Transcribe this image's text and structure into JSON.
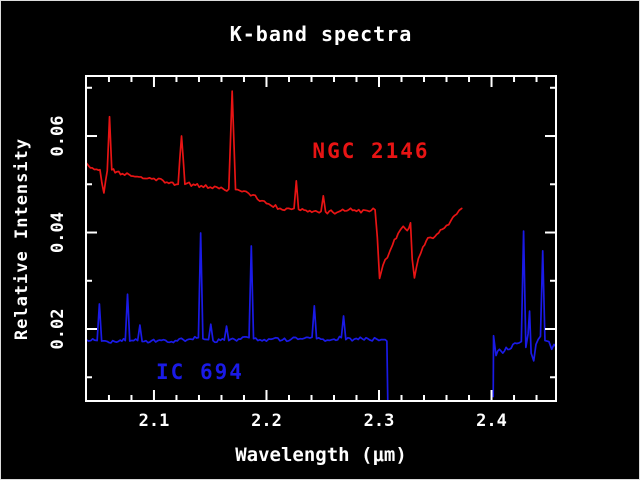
{
  "chart_data": {
    "type": "line",
    "title": "K-band spectra",
    "xlabel": "Wavelength (μm)",
    "ylabel": "Relative Intensity",
    "background_color": "#000000",
    "axis_color": "#ffffff",
    "grid": false,
    "xlim": [
      2.0396,
      2.4573
    ],
    "ylim": [
      0.00508,
      0.07244
    ],
    "x_major_ticks": [
      2.1,
      2.2,
      2.3,
      2.4
    ],
    "x_tick_labels": [
      "2.1",
      "2.2",
      "2.3",
      "2.4"
    ],
    "x_minor_ticks": [
      2.06,
      2.08,
      2.12,
      2.14,
      2.16,
      2.18,
      2.22,
      2.24,
      2.26,
      2.28,
      2.32,
      2.34,
      2.36,
      2.38,
      2.42,
      2.44
    ],
    "y_major_ticks": [
      0.02,
      0.04,
      0.06
    ],
    "y_tick_labels": [
      "0.02",
      "0.04",
      "0.06"
    ],
    "y_minor_ticks": [
      0.01,
      0.03,
      0.05,
      0.07
    ],
    "series": [
      {
        "name": "NGC 2146",
        "key": "ngc-2146",
        "color": "#e81414",
        "noise": 0.00042,
        "seed": 11,
        "label_at": [
          2.2929,
          0.0569
        ],
        "segments": [
          [
            [
              2.0396,
              0.0545
            ],
            [
              2.042,
              0.0538
            ],
            [
              2.045,
              0.0534
            ],
            [
              2.049,
              0.0531
            ],
            [
              2.052,
              0.053
            ],
            [
              2.0555,
              0.0482
            ],
            [
              2.0585,
              0.0528
            ],
            [
              2.0605,
              0.064
            ],
            [
              2.0625,
              0.053
            ],
            [
              2.067,
              0.0526
            ],
            [
              2.072,
              0.0522
            ],
            [
              2.078,
              0.052
            ],
            [
              2.085,
              0.0516
            ],
            [
              2.092,
              0.0512
            ],
            [
              2.1,
              0.0512
            ],
            [
              2.108,
              0.0508
            ],
            [
              2.115,
              0.0504
            ],
            [
              2.1215,
              0.05
            ],
            [
              2.1245,
              0.06
            ],
            [
              2.1275,
              0.05
            ],
            [
              2.135,
              0.05
            ],
            [
              2.142,
              0.0497
            ],
            [
              2.15,
              0.0494
            ],
            [
              2.158,
              0.0491
            ],
            [
              2.163,
              0.0488
            ],
            [
              2.1665,
              0.049
            ],
            [
              2.1695,
              0.0693
            ],
            [
              2.1725,
              0.0489
            ],
            [
              2.18,
              0.0486
            ],
            [
              2.188,
              0.0478
            ],
            [
              2.196,
              0.0466
            ],
            [
              2.204,
              0.0456
            ],
            [
              2.212,
              0.045
            ],
            [
              2.22,
              0.045
            ],
            [
              2.2245,
              0.045
            ],
            [
              2.2265,
              0.0507
            ],
            [
              2.2285,
              0.0448
            ],
            [
              2.235,
              0.0446
            ],
            [
              2.242,
              0.0444
            ],
            [
              2.2485,
              0.0444
            ],
            [
              2.2505,
              0.0476
            ],
            [
              2.2525,
              0.0443
            ],
            [
              2.259,
              0.0442
            ],
            [
              2.266,
              0.0445
            ],
            [
              2.273,
              0.0447
            ],
            [
              2.28,
              0.0444
            ],
            [
              2.288,
              0.0446
            ],
            [
              2.2965,
              0.0447
            ],
            [
              2.2985,
              0.039
            ],
            [
              2.3005,
              0.0305
            ],
            [
              2.3035,
              0.0332
            ],
            [
              2.3075,
              0.0348
            ],
            [
              2.312,
              0.0374
            ],
            [
              2.317,
              0.0398
            ],
            [
              2.3215,
              0.0413
            ],
            [
              2.325,
              0.0404
            ],
            [
              2.328,
              0.042
            ],
            [
              2.3295,
              0.0345
            ],
            [
              2.3315,
              0.0306
            ],
            [
              2.335,
              0.0346
            ],
            [
              2.339,
              0.037
            ],
            [
              2.3435,
              0.0389
            ],
            [
              2.348,
              0.0388
            ],
            [
              2.353,
              0.0399
            ],
            [
              2.358,
              0.0409
            ],
            [
              2.364,
              0.0425
            ],
            [
              2.369,
              0.0438
            ],
            [
              2.3735,
              0.045
            ]
          ]
        ]
      },
      {
        "name": "IC 694",
        "key": "ic-694",
        "color": "#1a1ae6",
        "noise": 0.00038,
        "seed": 29,
        "label_at": [
          2.1409,
          0.0111
        ],
        "segments": [
          [
            [
              2.0396,
              0.0178
            ],
            [
              2.044,
              0.0176
            ],
            [
              2.047,
              0.0177
            ],
            [
              2.0495,
              0.0176
            ],
            [
              2.0515,
              0.0252
            ],
            [
              2.0535,
              0.0175
            ],
            [
              2.06,
              0.0172
            ],
            [
              2.065,
              0.0174
            ],
            [
              2.07,
              0.0177
            ],
            [
              2.0745,
              0.0176
            ],
            [
              2.0765,
              0.0272
            ],
            [
              2.0785,
              0.0175
            ],
            [
              2.082,
              0.0176
            ],
            [
              2.0855,
              0.0176
            ],
            [
              2.0875,
              0.0208
            ],
            [
              2.0895,
              0.0174
            ],
            [
              2.098,
              0.0176
            ],
            [
              2.105,
              0.0177
            ],
            [
              2.112,
              0.0173
            ],
            [
              2.119,
              0.0176
            ],
            [
              2.126,
              0.0178
            ],
            [
              2.133,
              0.0179
            ],
            [
              2.1395,
              0.0182
            ],
            [
              2.1415,
              0.0399
            ],
            [
              2.1435,
              0.018
            ],
            [
              2.1485,
              0.0178
            ],
            [
              2.1505,
              0.021
            ],
            [
              2.1525,
              0.0176
            ],
            [
              2.1625,
              0.0177
            ],
            [
              2.1645,
              0.0206
            ],
            [
              2.1665,
              0.0176
            ],
            [
              2.177,
              0.0179
            ],
            [
              2.1845,
              0.0182
            ],
            [
              2.1865,
              0.0372
            ],
            [
              2.1885,
              0.018
            ],
            [
              2.198,
              0.0178
            ],
            [
              2.206,
              0.018
            ],
            [
              2.214,
              0.0177
            ],
            [
              2.222,
              0.0179
            ],
            [
              2.23,
              0.018
            ],
            [
              2.2405,
              0.0183
            ],
            [
              2.2425,
              0.0248
            ],
            [
              2.2445,
              0.018
            ],
            [
              2.254,
              0.0177
            ],
            [
              2.26,
              0.0179
            ],
            [
              2.2665,
              0.0182
            ],
            [
              2.2685,
              0.0227
            ],
            [
              2.2705,
              0.0178
            ],
            [
              2.278,
              0.0179
            ],
            [
              2.285,
              0.018
            ],
            [
              2.292,
              0.0177
            ],
            [
              2.298,
              0.0179
            ],
            [
              2.304,
              0.0178
            ],
            [
              2.307,
              0.0175
            ],
            [
              2.3078,
              0.005
            ]
          ],
          [
            [
              2.4015,
              0.006
            ],
            [
              2.4018,
              0.0186
            ],
            [
              2.404,
              0.0145
            ],
            [
              2.407,
              0.0158
            ],
            [
              2.41,
              0.015
            ],
            [
              2.413,
              0.0162
            ],
            [
              2.416,
              0.0158
            ],
            [
              2.419,
              0.0168
            ],
            [
              2.4225,
              0.017
            ],
            [
              2.4265,
              0.0174
            ],
            [
              2.4285,
              0.0403
            ],
            [
              2.4305,
              0.0162
            ],
            [
              2.4325,
              0.019
            ],
            [
              2.4338,
              0.0237
            ],
            [
              2.4352,
              0.015
            ],
            [
              2.4375,
              0.0134
            ],
            [
              2.4395,
              0.0168
            ],
            [
              2.4435,
              0.0185
            ],
            [
              2.4455,
              0.0362
            ],
            [
              2.4475,
              0.0176
            ],
            [
              2.451,
              0.0174
            ],
            [
              2.4535,
              0.0158
            ],
            [
              2.4555,
              0.0168
            ],
            [
              2.4573,
              0.0163
            ]
          ]
        ]
      }
    ]
  }
}
